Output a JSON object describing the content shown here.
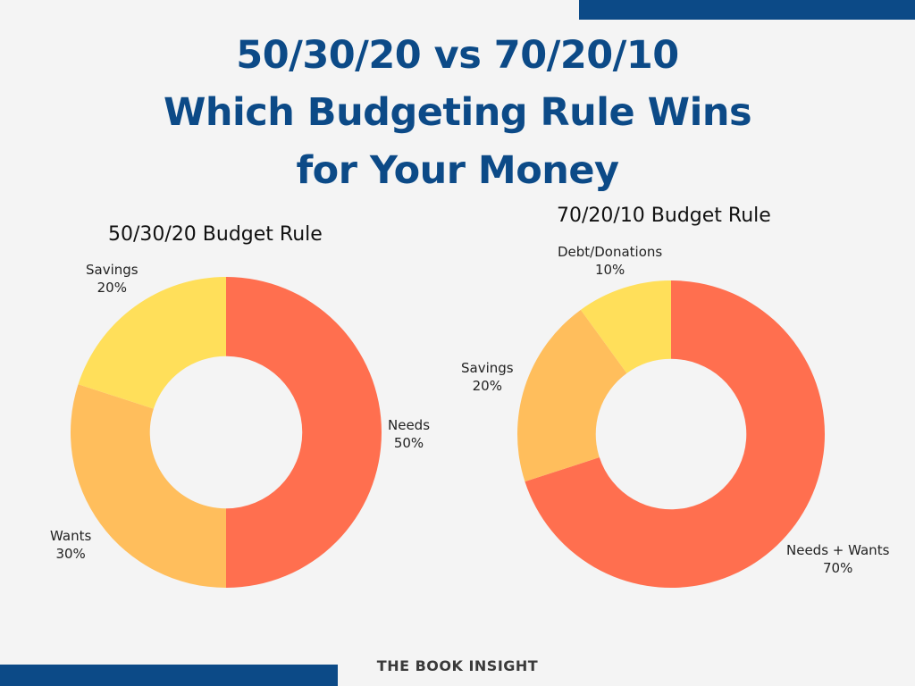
{
  "header": {
    "line1": "50/30/20 vs 70/20/10",
    "line2": "Which Budgeting Rule Wins",
    "line3": "for  Your Money"
  },
  "footer": {
    "brand": "THE BOOK INSIGHT"
  },
  "colors": {
    "needs": "#ff6f4f",
    "wants": "#ffbe5c",
    "savings": "#ffdf5a",
    "title": "#0c4a87",
    "background": "#f4f4f4"
  },
  "chart_data": [
    {
      "type": "pie",
      "title": "50/30/20 Budget Rule",
      "categories": [
        "Needs",
        "Wants",
        "Savings"
      ],
      "values": [
        50,
        30,
        20
      ],
      "labels": [
        {
          "name": "Needs",
          "pct": "50%"
        },
        {
          "name": "Wants",
          "pct": "30%"
        },
        {
          "name": "Savings",
          "pct": "20%"
        }
      ],
      "colors": [
        "#ff6f4f",
        "#ffbe5c",
        "#ffdf5a"
      ],
      "donut": true
    },
    {
      "type": "pie",
      "title": "70/20/10 Budget Rule",
      "categories": [
        "Needs + Wants",
        "Savings",
        "Debt/Donations"
      ],
      "values": [
        70,
        20,
        10
      ],
      "labels": [
        {
          "name": "Needs + Wants",
          "pct": "70%"
        },
        {
          "name": "Savings",
          "pct": "20%"
        },
        {
          "name": "Debt/Donations",
          "pct": "10%"
        }
      ],
      "colors": [
        "#ff6f4f",
        "#ffbe5c",
        "#ffdf5a"
      ],
      "donut": true
    }
  ]
}
